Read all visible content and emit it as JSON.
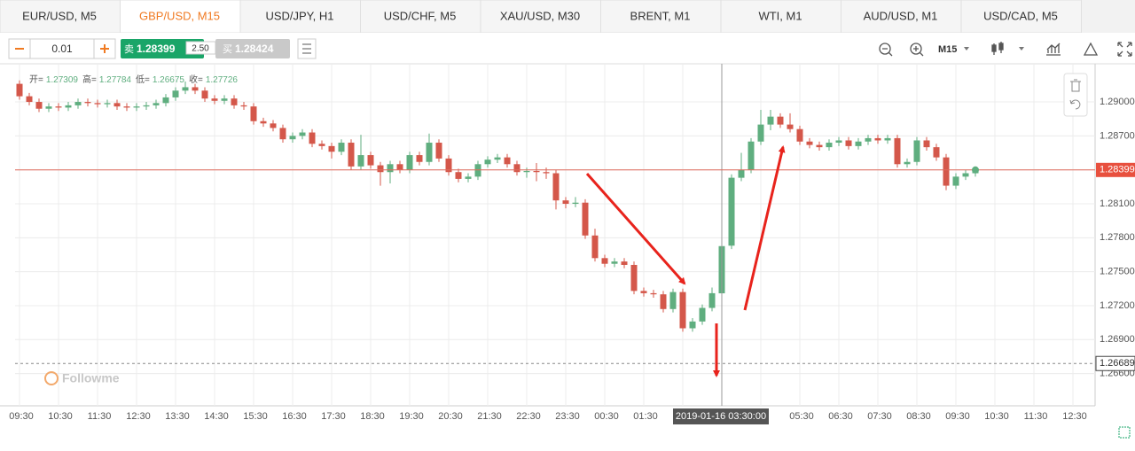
{
  "tabs": [
    "EUR/USD, M5",
    "GBP/USD, M15",
    "USD/JPY, H1",
    "USD/CHF, M5",
    "XAU/USD, M30",
    "BRENT, M1",
    "WTI, M1",
    "AUD/USD, M1",
    "USD/CAD, M5"
  ],
  "toolbar": {
    "lot": "0.01",
    "sell_label": "卖",
    "sell_price": "1.28399",
    "spread": "2.50",
    "buy_label": "买",
    "buy_price": "1.28424",
    "timeframe": "M15"
  },
  "chart_data": {
    "type": "candlestick",
    "ohlc_labels": [
      "开=",
      "高=",
      "低=",
      "收="
    ],
    "up_color": "#5fae7f",
    "down_color": "#d4574a",
    "open": [
      1.2916,
      1.2905,
      1.29,
      1.2894,
      1.2896,
      1.2895,
      1.2897,
      1.29,
      1.2899,
      1.2898,
      1.2899,
      1.2896,
      1.2895,
      1.2896,
      1.2897,
      1.2899,
      1.2904,
      1.291,
      1.2913,
      1.291,
      1.2903,
      1.2901,
      1.2903,
      1.2897,
      1.2896,
      1.2883,
      1.2881,
      1.2877,
      1.2867,
      1.287,
      1.2873,
      1.2863,
      1.2861,
      1.2856,
      1.2864,
      1.2843,
      1.2853,
      1.2844,
      1.2838,
      1.2845,
      1.284,
      1.2853,
      1.2847,
      1.2864,
      1.285,
      1.2838,
      1.2832,
      1.2834,
      1.2845,
      1.2849,
      1.2851,
      1.2845,
      1.2838,
      1.2839,
      1.2838,
      1.2837,
      1.2813,
      1.281,
      1.2811,
      1.2782,
      1.2762,
      1.2757,
      1.2759,
      1.2756,
      1.2733,
      1.2731,
      1.273,
      1.2717,
      1.2732,
      1.27,
      1.2706,
      1.2718,
      1.27309,
      1.2773,
      1.2833,
      1.284,
      1.2865,
      1.288,
      1.2887,
      1.288,
      1.2876,
      1.2865,
      1.2862,
      1.286,
      1.2864,
      1.2866,
      1.2861,
      1.2865,
      1.2868,
      1.2866,
      1.2868,
      1.2845,
      1.2847,
      1.2866,
      1.286,
      1.2851,
      1.2826,
      1.2834,
      1.2837
    ],
    "high": [
      1.2919,
      1.2908,
      1.2903,
      1.2899,
      1.2899,
      1.29,
      1.2903,
      1.2903,
      1.2902,
      1.2902,
      1.2902,
      1.2899,
      1.2899,
      1.29,
      1.2902,
      1.2907,
      1.2913,
      1.2918,
      1.2916,
      1.2913,
      1.2906,
      1.2906,
      1.2906,
      1.29,
      1.2899,
      1.2886,
      1.2884,
      1.288,
      1.2873,
      1.2876,
      1.2876,
      1.2866,
      1.2864,
      1.2867,
      1.2867,
      1.2871,
      1.2856,
      1.2847,
      1.2848,
      1.2848,
      1.2856,
      1.2856,
      1.2872,
      1.2867,
      1.2853,
      1.2841,
      1.2837,
      1.2848,
      1.2852,
      1.2854,
      1.2854,
      1.2848,
      1.2842,
      1.2846,
      1.2842,
      1.284,
      1.2816,
      1.2816,
      1.2814,
      1.2788,
      1.2765,
      1.2762,
      1.2762,
      1.2759,
      1.2736,
      1.2734,
      1.2733,
      1.2735,
      1.2735,
      1.2709,
      1.2721,
      1.2736,
      1.27784,
      1.2836,
      1.2855,
      1.2868,
      1.2893,
      1.2893,
      1.289,
      1.289,
      1.2879,
      1.2868,
      1.2865,
      1.2867,
      1.2869,
      1.2869,
      1.2868,
      1.2871,
      1.2871,
      1.2871,
      1.2871,
      1.285,
      1.2869,
      1.2869,
      1.2863,
      1.2854,
      1.2837,
      1.284,
      1.2843
    ],
    "low": [
      1.2902,
      1.2897,
      1.2891,
      1.2891,
      1.2892,
      1.2892,
      1.2894,
      1.2896,
      1.2895,
      1.2895,
      1.2893,
      1.2892,
      1.2892,
      1.2893,
      1.2894,
      1.2896,
      1.2901,
      1.2907,
      1.2907,
      1.29,
      1.2898,
      1.2898,
      1.2894,
      1.2893,
      1.288,
      1.2878,
      1.2874,
      1.2864,
      1.2864,
      1.2867,
      1.286,
      1.2858,
      1.285,
      1.2853,
      1.284,
      1.284,
      1.2841,
      1.2826,
      1.2828,
      1.2837,
      1.2837,
      1.2844,
      1.2844,
      1.2847,
      1.2835,
      1.2829,
      1.2829,
      1.2831,
      1.2842,
      1.2846,
      1.2842,
      1.2835,
      1.2833,
      1.283,
      1.2832,
      1.2805,
      1.2806,
      1.2807,
      1.2779,
      1.2759,
      1.2754,
      1.2754,
      1.2753,
      1.273,
      1.2728,
      1.2727,
      1.2714,
      1.2714,
      1.2697,
      1.2697,
      1.2703,
      1.2715,
      1.26675,
      1.277,
      1.283,
      1.2837,
      1.2862,
      1.2875,
      1.2877,
      1.2873,
      1.2862,
      1.2859,
      1.2857,
      1.2857,
      1.2861,
      1.2858,
      1.2858,
      1.2862,
      1.2863,
      1.2863,
      1.2842,
      1.2842,
      1.2844,
      1.2857,
      1.2848,
      1.2822,
      1.2823,
      1.2831,
      1.2834
    ],
    "close": [
      1.2905,
      1.29,
      1.2894,
      1.2896,
      1.2895,
      1.2897,
      1.29,
      1.2899,
      1.2898,
      1.2899,
      1.2896,
      1.2895,
      1.2896,
      1.2897,
      1.2899,
      1.2904,
      1.291,
      1.2913,
      1.291,
      1.2903,
      1.2901,
      1.2903,
      1.2897,
      1.2896,
      1.2883,
      1.2881,
      1.2877,
      1.2867,
      1.287,
      1.2873,
      1.2863,
      1.2861,
      1.2856,
      1.2864,
      1.2843,
      1.2853,
      1.2844,
      1.2838,
      1.2845,
      1.284,
      1.2853,
      1.2847,
      1.2864,
      1.285,
      1.2838,
      1.2832,
      1.2834,
      1.2845,
      1.2849,
      1.2851,
      1.2845,
      1.2838,
      1.2839,
      1.2838,
      1.2837,
      1.2813,
      1.281,
      1.2811,
      1.2782,
      1.2762,
      1.2757,
      1.2759,
      1.2756,
      1.2733,
      1.2731,
      1.273,
      1.2717,
      1.2732,
      1.27,
      1.2706,
      1.2718,
      1.2731,
      1.27726,
      1.2833,
      1.284,
      1.2865,
      1.288,
      1.2887,
      1.288,
      1.2876,
      1.2865,
      1.2862,
      1.286,
      1.2864,
      1.2866,
      1.2861,
      1.2865,
      1.2868,
      1.2866,
      1.2868,
      1.2845,
      1.2847,
      1.2866,
      1.286,
      1.2851,
      1.2826,
      1.2834,
      1.2837,
      1.28399
    ],
    "ylim": [
      1.26315,
      1.29337
    ],
    "yticks": [
      {
        "value": 1.29,
        "label": "1.29000"
      },
      {
        "value": 1.287,
        "label": "1.28700"
      },
      {
        "value": 1.284,
        "label": null
      },
      {
        "value": 1.281,
        "label": "1.28100"
      },
      {
        "value": 1.278,
        "label": "1.27800"
      },
      {
        "value": 1.275,
        "label": "1.27500"
      },
      {
        "value": 1.272,
        "label": "1.27200"
      },
      {
        "value": 1.269,
        "label": "1.26900"
      },
      {
        "value": 1.266,
        "label": "1.26600"
      }
    ],
    "xticks": [
      "09:30",
      "10:30",
      "11:30",
      "12:30",
      "13:30",
      "14:30",
      "15:30",
      "16:30",
      "17:30",
      "18:30",
      "19:30",
      "20:30",
      "21:30",
      "22:30",
      "23:30",
      "00:30",
      "01:30",
      null,
      null,
      null,
      "05:30",
      "06:30",
      "07:30",
      "08:30",
      "09:30",
      "10:30",
      "11:30",
      "12:30"
    ],
    "grid": true,
    "crosshair_label": "2019-01-16 03:30:00",
    "low_line": 1.26689,
    "watermark": "Followme"
  }
}
